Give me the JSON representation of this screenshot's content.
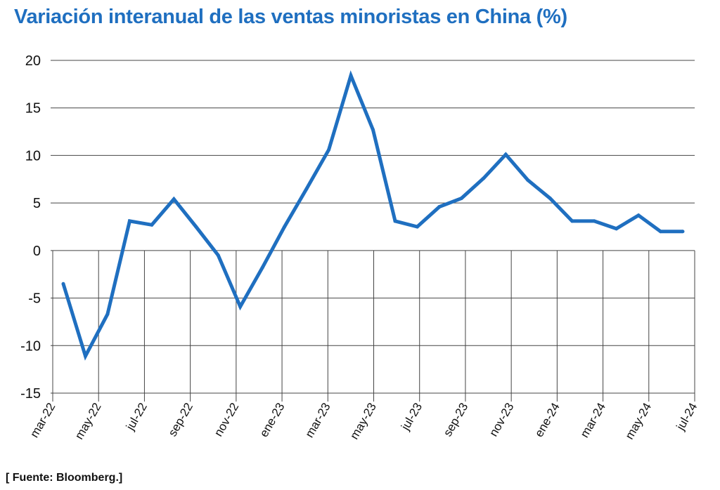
{
  "title": "Variación interanual de las ventas minoristas en China (%)",
  "source": "[ Fuente: Bloomberg.]",
  "colors": {
    "title": "#1f6fc0",
    "line": "#1f6fc0",
    "grid": "#444444",
    "text": "#111111"
  },
  "chart_data": {
    "type": "line",
    "title": "Variación interanual de las ventas minoristas en China (%)",
    "xlabel": "",
    "ylabel": "",
    "ylim": [
      -15,
      20
    ],
    "yticks": [
      20,
      15,
      10,
      5,
      0,
      -5,
      -10,
      -15
    ],
    "grid": true,
    "legend": "none",
    "x_tick_labels": [
      "mar-22",
      "may-22",
      "jul-22",
      "sep-22",
      "nov-22",
      "ene-23",
      "mar-23",
      "may-23",
      "jul-23",
      "sep-23",
      "nov-23",
      "ene-24",
      "mar-24",
      "may-24",
      "jul-24"
    ],
    "x": [
      "mar-22",
      "abr-22",
      "may-22",
      "jun-22",
      "jul-22",
      "ago-22",
      "sep-22",
      "oct-22",
      "nov-22",
      "dic-22",
      "ene-23",
      "feb-23",
      "mar-23",
      "abr-23",
      "may-23",
      "jun-23",
      "jul-23",
      "ago-23",
      "sep-23",
      "oct-23",
      "nov-23",
      "dic-23",
      "ene-24",
      "feb-24",
      "mar-24",
      "abr-24",
      "may-24",
      "jun-24",
      "jul-24"
    ],
    "series": [
      {
        "values": [
          -3.5,
          -11.1,
          -6.7,
          3.1,
          2.7,
          5.4,
          2.5,
          -0.5,
          -5.9,
          -1.8,
          2.5,
          6.5,
          10.6,
          18.4,
          12.7,
          3.1,
          2.5,
          4.6,
          5.5,
          7.6,
          10.1,
          7.4,
          5.5,
          3.1,
          3.1,
          2.3,
          3.7,
          2.0,
          2.0
        ]
      }
    ]
  }
}
